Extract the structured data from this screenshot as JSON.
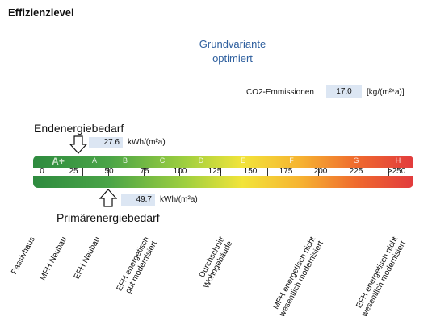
{
  "title": "Effizienzlevel",
  "variant": {
    "line1": "Grundvariante",
    "line2": "optimiert"
  },
  "co2": {
    "label": "CO2-Emmissionen",
    "value": "17.0",
    "unit": "[kg/(m²*a)]"
  },
  "end_energy": {
    "label": "Endenergiebedarf",
    "value": "27.6",
    "unit": "kWh/(m²a)"
  },
  "primary_energy": {
    "label": "Primärenergiebedarf",
    "value": "49.7",
    "unit": "kWh/(m²a)"
  },
  "scale": {
    "classes": [
      "A+",
      "A",
      "B",
      "C",
      "D",
      "E",
      "F",
      "G",
      "H"
    ],
    "ticks": [
      "0",
      "25",
      "50",
      "75",
      "100",
      "125",
      "150",
      "175",
      "200",
      "225",
      ">250"
    ]
  },
  "categories": [
    {
      "line1": "Passivhaus",
      "line2": ""
    },
    {
      "line1": "MFH Neubau",
      "line2": ""
    },
    {
      "line1": "EFH Neubau",
      "line2": ""
    },
    {
      "line1": "EFH energetisch",
      "line2": "gut modernisiert"
    },
    {
      "line1": "Durchschnitt",
      "line2": "Wohngebäude"
    },
    {
      "line1": "MFH energetisch nicht",
      "line2": "wesentlich modernisiert"
    },
    {
      "line1": "EFH energetisch nicht",
      "line2": "wesentlich modernisiert"
    }
  ],
  "colors": {
    "accent_blue": "#2e5f9e",
    "value_box": "#dce6f3"
  }
}
